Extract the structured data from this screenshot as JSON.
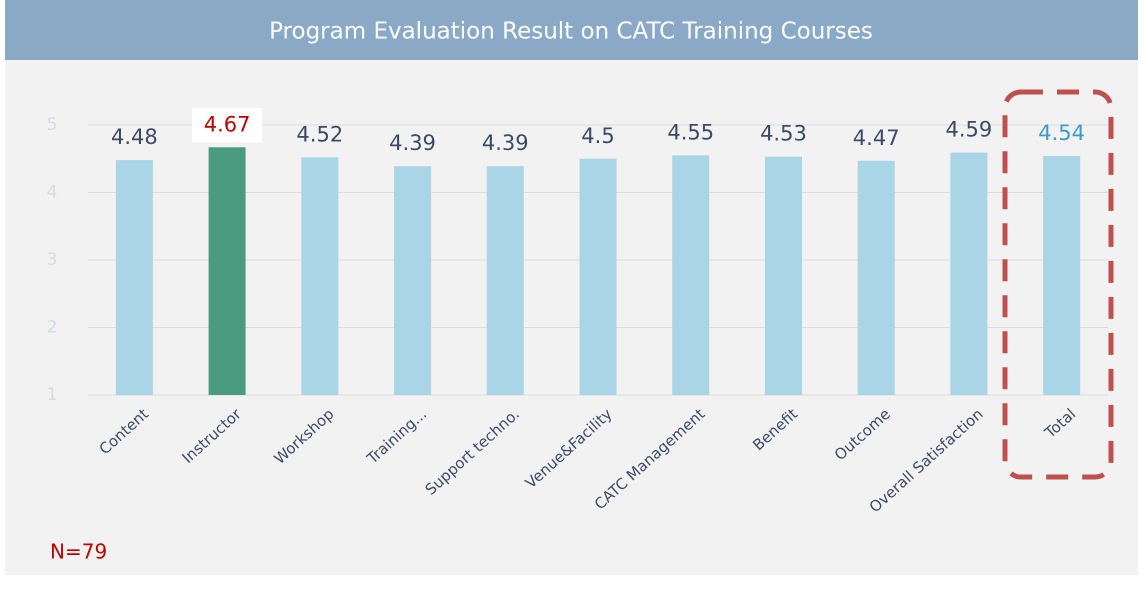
{
  "chart_data": {
    "type": "bar",
    "title": "Program Evaluation Result on CATC Training Courses",
    "categories": [
      "Content",
      "Instructor",
      "Workshop",
      "Training...",
      "Support techno.",
      "Venue&Facility",
      "CATC Management",
      "Benefit",
      "Outcome",
      "Overall Satisfaction",
      "Total"
    ],
    "values": [
      4.48,
      4.67,
      4.52,
      4.39,
      4.39,
      4.5,
      4.55,
      4.53,
      4.47,
      4.59,
      4.54
    ],
    "colors": [
      "#a9d5e6",
      "#4a9b7f",
      "#a9d5e6",
      "#a9d5e6",
      "#a9d5e6",
      "#a9d5e6",
      "#a9d5e6",
      "#a9d5e6",
      "#a9d5e6",
      "#a9d5e6",
      "#a9d5e6"
    ],
    "value_label_colors": [
      "#3b4a66",
      "#c00000",
      "#3b4a66",
      "#3b4a66",
      "#3b4a66",
      "#3b4a66",
      "#3b4a66",
      "#3b4a66",
      "#3b4a66",
      "#3b4a66",
      "#3d9bc9"
    ],
    "ylim": [
      1,
      5
    ],
    "yticks": [
      1,
      2,
      3,
      4,
      5
    ],
    "grid": true,
    "annotation": "N=79"
  }
}
